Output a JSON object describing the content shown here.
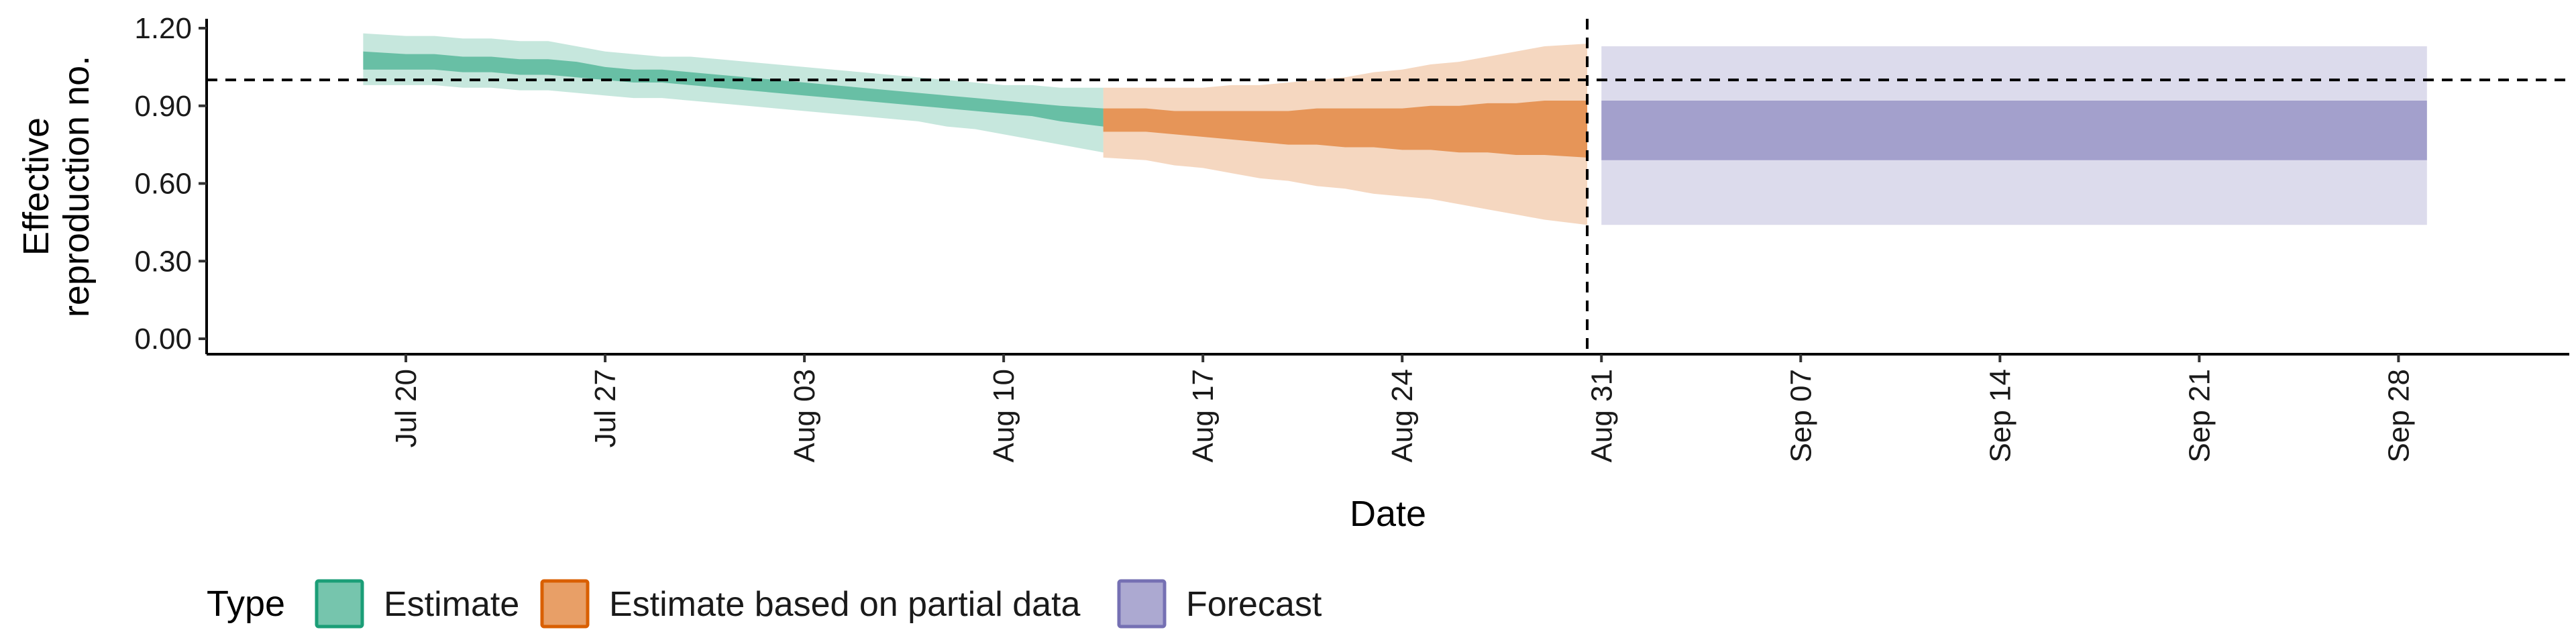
{
  "chart_data": {
    "type": "area",
    "xlabel": "Date",
    "ylabel": "Effective reproduction no.",
    "ylim": [
      0,
      1.25
    ],
    "yticks": [
      0.0,
      0.3,
      0.6,
      0.9,
      1.2
    ],
    "ytick_labels": [
      "0.00",
      "0.30",
      "0.60",
      "0.90",
      "1.20"
    ],
    "xlim": [
      "2020-07-13",
      "2020-10-04"
    ],
    "xtick_values": [
      "2020-07-20",
      "2020-07-27",
      "2020-08-03",
      "2020-08-10",
      "2020-08-17",
      "2020-08-24",
      "2020-08-31",
      "2020-09-07",
      "2020-09-14",
      "2020-09-21",
      "2020-09-28"
    ],
    "xtick_labels": [
      "Jul 20",
      "Jul 27",
      "Aug 03",
      "Aug 10",
      "Aug 17",
      "Aug 24",
      "Aug 31",
      "Sep 07",
      "Sep 14",
      "Sep 21",
      "Sep 28"
    ],
    "reference_hline": 1.0,
    "reference_vline": "2020-08-30",
    "grid": false,
    "legend": {
      "title": "Type",
      "placement": "bottom",
      "entries": [
        "Estimate",
        "Estimate based on partial data",
        "Forecast"
      ]
    },
    "series": [
      {
        "name": "Estimate",
        "color": "#1b9e77",
        "points": [
          {
            "x": "2020-07-19",
            "lo90": 0.98,
            "lo50": 1.04,
            "hi50": 1.11,
            "hi90": 1.18
          },
          {
            "x": "2020-07-20",
            "lo90": 0.98,
            "lo50": 1.04,
            "hi50": 1.1,
            "hi90": 1.17
          },
          {
            "x": "2020-07-21",
            "lo90": 0.98,
            "lo50": 1.04,
            "hi50": 1.1,
            "hi90": 1.17
          },
          {
            "x": "2020-07-22",
            "lo90": 0.97,
            "lo50": 1.03,
            "hi50": 1.09,
            "hi90": 1.16
          },
          {
            "x": "2020-07-23",
            "lo90": 0.97,
            "lo50": 1.03,
            "hi50": 1.09,
            "hi90": 1.16
          },
          {
            "x": "2020-07-24",
            "lo90": 0.96,
            "lo50": 1.02,
            "hi50": 1.08,
            "hi90": 1.15
          },
          {
            "x": "2020-07-25",
            "lo90": 0.96,
            "lo50": 1.02,
            "hi50": 1.08,
            "hi90": 1.15
          },
          {
            "x": "2020-07-26",
            "lo90": 0.95,
            "lo50": 1.01,
            "hi50": 1.07,
            "hi90": 1.13
          },
          {
            "x": "2020-07-27",
            "lo90": 0.94,
            "lo50": 1.0,
            "hi50": 1.05,
            "hi90": 1.11
          },
          {
            "x": "2020-07-28",
            "lo90": 0.93,
            "lo50": 0.99,
            "hi50": 1.04,
            "hi90": 1.1
          },
          {
            "x": "2020-07-29",
            "lo90": 0.93,
            "lo50": 0.99,
            "hi50": 1.04,
            "hi90": 1.09
          },
          {
            "x": "2020-07-30",
            "lo90": 0.92,
            "lo50": 0.98,
            "hi50": 1.03,
            "hi90": 1.09
          },
          {
            "x": "2020-07-31",
            "lo90": 0.91,
            "lo50": 0.97,
            "hi50": 1.02,
            "hi90": 1.08
          },
          {
            "x": "2020-08-01",
            "lo90": 0.9,
            "lo50": 0.96,
            "hi50": 1.01,
            "hi90": 1.07
          },
          {
            "x": "2020-08-02",
            "lo90": 0.89,
            "lo50": 0.95,
            "hi50": 1.0,
            "hi90": 1.06
          },
          {
            "x": "2020-08-03",
            "lo90": 0.88,
            "lo50": 0.94,
            "hi50": 0.99,
            "hi90": 1.05
          },
          {
            "x": "2020-08-04",
            "lo90": 0.87,
            "lo50": 0.93,
            "hi50": 0.98,
            "hi90": 1.04
          },
          {
            "x": "2020-08-05",
            "lo90": 0.86,
            "lo50": 0.92,
            "hi50": 0.97,
            "hi90": 1.03
          },
          {
            "x": "2020-08-06",
            "lo90": 0.85,
            "lo50": 0.91,
            "hi50": 0.96,
            "hi90": 1.02
          },
          {
            "x": "2020-08-07",
            "lo90": 0.84,
            "lo50": 0.9,
            "hi50": 0.95,
            "hi90": 1.01
          },
          {
            "x": "2020-08-08",
            "lo90": 0.82,
            "lo50": 0.89,
            "hi50": 0.94,
            "hi90": 1.0
          },
          {
            "x": "2020-08-09",
            "lo90": 0.81,
            "lo50": 0.88,
            "hi50": 0.93,
            "hi90": 0.99
          },
          {
            "x": "2020-08-10",
            "lo90": 0.79,
            "lo50": 0.87,
            "hi50": 0.92,
            "hi90": 0.98
          },
          {
            "x": "2020-08-11",
            "lo90": 0.77,
            "lo50": 0.86,
            "hi50": 0.91,
            "hi90": 0.98
          },
          {
            "x": "2020-08-12",
            "lo90": 0.75,
            "lo50": 0.84,
            "hi50": 0.9,
            "hi90": 0.97
          },
          {
            "x": "2020-08-13",
            "lo90": 0.72,
            "lo50": 0.82,
            "hi50": 0.89,
            "hi90": 0.97
          }
        ]
      },
      {
        "name": "Estimate based on partial data",
        "color": "#d95f02",
        "points": [
          {
            "x": "2020-08-14",
            "lo90": 0.7,
            "lo50": 0.8,
            "hi50": 0.89,
            "hi90": 0.97
          },
          {
            "x": "2020-08-15",
            "lo90": 0.69,
            "lo50": 0.8,
            "hi50": 0.89,
            "hi90": 0.97
          },
          {
            "x": "2020-08-16",
            "lo90": 0.67,
            "lo50": 0.79,
            "hi50": 0.88,
            "hi90": 0.97
          },
          {
            "x": "2020-08-17",
            "lo90": 0.66,
            "lo50": 0.78,
            "hi50": 0.88,
            "hi90": 0.97
          },
          {
            "x": "2020-08-18",
            "lo90": 0.64,
            "lo50": 0.77,
            "hi50": 0.88,
            "hi90": 0.98
          },
          {
            "x": "2020-08-19",
            "lo90": 0.62,
            "lo50": 0.76,
            "hi50": 0.88,
            "hi90": 0.98
          },
          {
            "x": "2020-08-20",
            "lo90": 0.61,
            "lo50": 0.75,
            "hi50": 0.88,
            "hi90": 0.99
          },
          {
            "x": "2020-08-21",
            "lo90": 0.59,
            "lo50": 0.75,
            "hi50": 0.89,
            "hi90": 1.0
          },
          {
            "x": "2020-08-22",
            "lo90": 0.58,
            "lo50": 0.74,
            "hi50": 0.89,
            "hi90": 1.01
          },
          {
            "x": "2020-08-23",
            "lo90": 0.56,
            "lo50": 0.74,
            "hi50": 0.89,
            "hi90": 1.03
          },
          {
            "x": "2020-08-24",
            "lo90": 0.55,
            "lo50": 0.73,
            "hi50": 0.89,
            "hi90": 1.04
          },
          {
            "x": "2020-08-25",
            "lo90": 0.54,
            "lo50": 0.73,
            "hi50": 0.9,
            "hi90": 1.06
          },
          {
            "x": "2020-08-26",
            "lo90": 0.52,
            "lo50": 0.72,
            "hi50": 0.9,
            "hi90": 1.07
          },
          {
            "x": "2020-08-27",
            "lo90": 0.5,
            "lo50": 0.72,
            "hi50": 0.91,
            "hi90": 1.09
          },
          {
            "x": "2020-08-28",
            "lo90": 0.48,
            "lo50": 0.71,
            "hi50": 0.91,
            "hi90": 1.11
          },
          {
            "x": "2020-08-29",
            "lo90": 0.46,
            "lo50": 0.71,
            "hi50": 0.92,
            "hi90": 1.13
          },
          {
            "x": "2020-08-30",
            "lo90": 0.44,
            "lo50": 0.7,
            "hi50": 0.92,
            "hi90": 1.14
          }
        ]
      },
      {
        "name": "Forecast",
        "color": "#7570b3",
        "points": [
          {
            "x": "2020-08-31",
            "lo90": 0.44,
            "lo50": 0.69,
            "hi50": 0.92,
            "hi90": 1.13
          },
          {
            "x": "2020-09-29",
            "lo90": 0.44,
            "lo50": 0.69,
            "hi50": 0.92,
            "hi90": 1.13
          }
        ]
      }
    ]
  }
}
